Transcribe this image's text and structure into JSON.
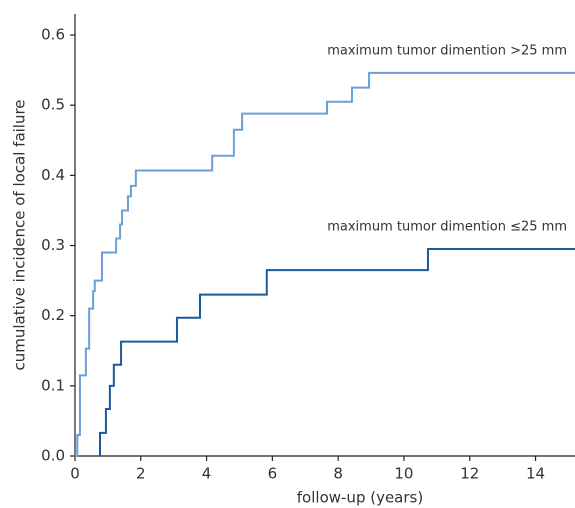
{
  "chart_data": {
    "type": "line",
    "step": "post",
    "x_label": "follow-up (years)",
    "y_label": "cumulative incidence of local failure",
    "xlim": [
      0,
      15.2
    ],
    "ylim": [
      0,
      0.63
    ],
    "xticks": [
      0,
      2,
      4,
      6,
      8,
      10,
      12,
      14
    ],
    "yticks": [
      {
        "value": 0,
        "label": "0.0"
      },
      0.1,
      0.2,
      0.3,
      0.4,
      0.5,
      0.6
    ],
    "grid": false,
    "series": [
      {
        "name": "maximum tumor dimention >25 mm",
        "color": "#6a9fd8",
        "x": [
          0,
          0.07,
          0.15,
          0.33,
          0.43,
          0.55,
          0.6,
          0.82,
          1.25,
          1.37,
          1.43,
          1.61,
          1.7,
          1.85,
          4.17,
          4.83,
          5.08,
          7.66,
          8.42,
          8.94
        ],
        "values": [
          0,
          0.03,
          0.115,
          0.153,
          0.21,
          0.235,
          0.25,
          0.29,
          0.31,
          0.33,
          0.35,
          0.37,
          0.385,
          0.407,
          0.428,
          0.465,
          0.488,
          0.505,
          0.525,
          0.546
        ]
      },
      {
        "name": "maximum tumor dimention ≤25 mm",
        "color": "#1a5a9a",
        "x": [
          0.76,
          0.76,
          0.94,
          1.06,
          1.18,
          1.4,
          3.1,
          3.8,
          5.83,
          10.73
        ],
        "values": [
          0,
          0.033,
          0.067,
          0.1,
          0.13,
          0.163,
          0.197,
          0.23,
          0.265,
          0.295
        ]
      }
    ]
  }
}
